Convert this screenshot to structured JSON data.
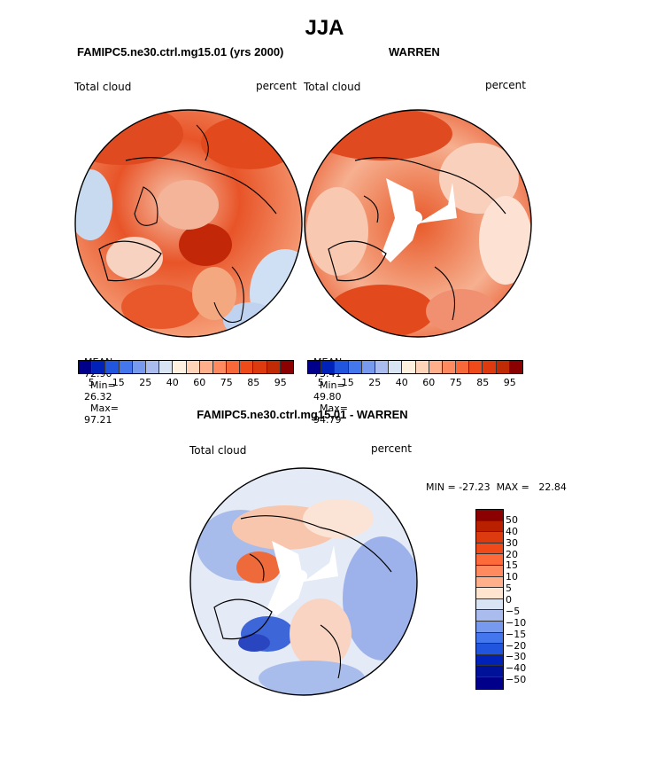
{
  "header": {
    "title": "JJA"
  },
  "panels": [
    {
      "heading": "FAMIPC5.ne30.ctrl.mg15.01 (yrs 2000)",
      "variable": "Total cloud",
      "units": "percent",
      "mean_label": "MEAN=",
      "mean": "72.90",
      "min_label": "Min=",
      "min": "26.32",
      "max_label": "Max=",
      "max": "97.21"
    },
    {
      "heading": "WARREN",
      "variable": "Total cloud",
      "units": "percent",
      "mean_label": "MEAN=",
      "mean": "73.41",
      "min_label": "Min=",
      "min": "49.80",
      "max_label": "Max=",
      "max": "94.79"
    },
    {
      "heading": "FAMIPC5.ne30.ctrl.mg15.01 - WARREN",
      "variable": "Total cloud",
      "units": "percent",
      "minmax": "MIN = -27.23  MAX =   22.84"
    }
  ],
  "colorbar_abs": {
    "colors": [
      "#00008b",
      "#0022b8",
      "#2255dd",
      "#4477ee",
      "#7799ee",
      "#aabbee",
      "#d8e4f4",
      "#fff0e0",
      "#ffd4b8",
      "#ffb08a",
      "#ff8a60",
      "#f86838",
      "#ee4a1a",
      "#dd3a10",
      "#c02a05",
      "#8b0000"
    ],
    "ticks": [
      "5",
      "15",
      "25",
      "40",
      "60",
      "75",
      "85",
      "95"
    ]
  },
  "colorbar_diff": {
    "colors": [
      "#8b0000",
      "#b82000",
      "#dd3a10",
      "#f04a1a",
      "#ff6a3a",
      "#ff8a60",
      "#ffb08a",
      "#ffe4d0",
      "#d8e4f4",
      "#aabbee",
      "#7799ee",
      "#4477ee",
      "#2255dd",
      "#0022b8",
      "#001199",
      "#00008b"
    ],
    "ticks": [
      "50",
      "40",
      "30",
      "20",
      "15",
      "10",
      "5",
      "0",
      "−5",
      "−10",
      "−15",
      "−20",
      "−30",
      "−40",
      "−50"
    ]
  }
}
